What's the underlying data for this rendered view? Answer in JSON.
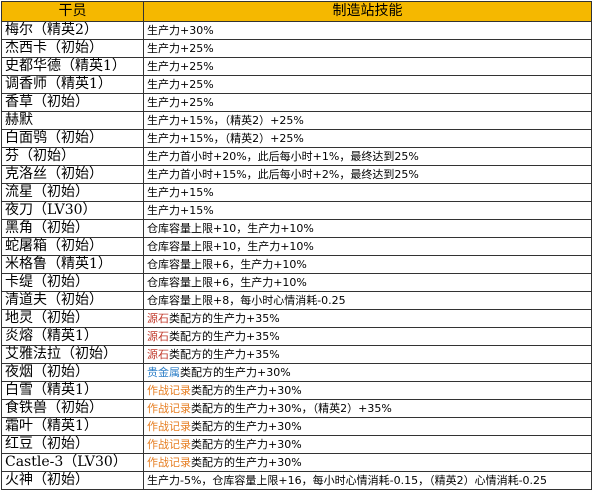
{
  "header": {
    "col_operator": "干员",
    "col_skill": "制造站技能"
  },
  "rows": [
    {
      "operator": "梅尔（精英2）",
      "skill": [
        {
          "t": "生产力+30%"
        }
      ]
    },
    {
      "operator": "杰西卡（初始）",
      "skill": [
        {
          "t": "生产力+25%"
        }
      ]
    },
    {
      "operator": "史都华德（精英1）",
      "skill": [
        {
          "t": "生产力+25%"
        }
      ]
    },
    {
      "operator": "调香师（精英1）",
      "skill": [
        {
          "t": "生产力+25%"
        }
      ]
    },
    {
      "operator": "香草（初始）",
      "skill": [
        {
          "t": "生产力+25%"
        }
      ]
    },
    {
      "operator": "赫默",
      "skill": [
        {
          "t": "生产力+15%，（精英2）+25%"
        }
      ]
    },
    {
      "operator": "白面鸮（初始）",
      "skill": [
        {
          "t": "生产力+15%，（精英2）+25%"
        }
      ]
    },
    {
      "operator": "芬（初始）",
      "skill": [
        {
          "t": "生产力首小时+20%，此后每小时+1%，最终达到25%"
        }
      ]
    },
    {
      "operator": "克洛丝（初始）",
      "skill": [
        {
          "t": "生产力首小时+15%，此后每小时+2%，最终达到25%"
        }
      ]
    },
    {
      "operator": "流星（初始）",
      "skill": [
        {
          "t": "生产力+15%"
        }
      ]
    },
    {
      "operator": "夜刀（LV30）",
      "skill": [
        {
          "t": "生产力+15%"
        }
      ]
    },
    {
      "operator": "黑角（初始）",
      "skill": [
        {
          "t": "仓库容量上限+10，生产力+10%"
        }
      ]
    },
    {
      "operator": "蛇屠箱（初始）",
      "skill": [
        {
          "t": "仓库容量上限+10，生产力+10%"
        }
      ]
    },
    {
      "operator": "米格鲁（精英1）",
      "skill": [
        {
          "t": "仓库容量上限+6，生产力+10%"
        }
      ]
    },
    {
      "operator": "卡缇（初始）",
      "skill": [
        {
          "t": "仓库容量上限+6，生产力+10%"
        }
      ]
    },
    {
      "operator": "清道夫（初始）",
      "skill": [
        {
          "t": "仓库容量上限+8，每小时心情消耗-0.25"
        }
      ]
    },
    {
      "operator": "地灵（初始）",
      "skill": [
        {
          "t": "源石",
          "c": "red"
        },
        {
          "t": "类配方的生产力+35%"
        }
      ]
    },
    {
      "operator": "炎熔（精英1）",
      "skill": [
        {
          "t": "源石",
          "c": "red"
        },
        {
          "t": "类配方的生产力+35%"
        }
      ]
    },
    {
      "operator": "艾雅法拉（初始）",
      "skill": [
        {
          "t": "源石",
          "c": "red"
        },
        {
          "t": "类配方的生产力+35%"
        }
      ]
    },
    {
      "operator": "夜烟（初始）",
      "skill": [
        {
          "t": "贵金属",
          "c": "blue"
        },
        {
          "t": "类配方的生产力+30%"
        }
      ]
    },
    {
      "operator": "白雪（精英1）",
      "skill": [
        {
          "t": "作战记录",
          "c": "orange"
        },
        {
          "t": "类配方的生产力+30%"
        }
      ]
    },
    {
      "operator": "食铁兽（初始）",
      "skill": [
        {
          "t": "作战记录",
          "c": "orange"
        },
        {
          "t": "类配方的生产力+30%，（精英2）+35%"
        }
      ]
    },
    {
      "operator": "霜叶（精英1）",
      "skill": [
        {
          "t": "作战记录",
          "c": "orange"
        },
        {
          "t": "类配方的生产力+30%"
        }
      ]
    },
    {
      "operator": "红豆（初始）",
      "skill": [
        {
          "t": "作战记录",
          "c": "orange"
        },
        {
          "t": "类配方的生产力+30%"
        }
      ]
    },
    {
      "operator": "Castle-3（LV30）",
      "skill": [
        {
          "t": "作战记录",
          "c": "orange"
        },
        {
          "t": "类配方的生产力+30%"
        }
      ]
    },
    {
      "operator": "火神（初始）",
      "skill": [
        {
          "t": "生产力-5%，仓库容量上限+16，每小时心情消耗-0.15，（精英2）心情消耗-0.25"
        }
      ]
    }
  ],
  "colors": {
    "header_bg": "#f5b800",
    "red": "#c0392b",
    "blue": "#2f80c8",
    "orange": "#e67e22"
  }
}
